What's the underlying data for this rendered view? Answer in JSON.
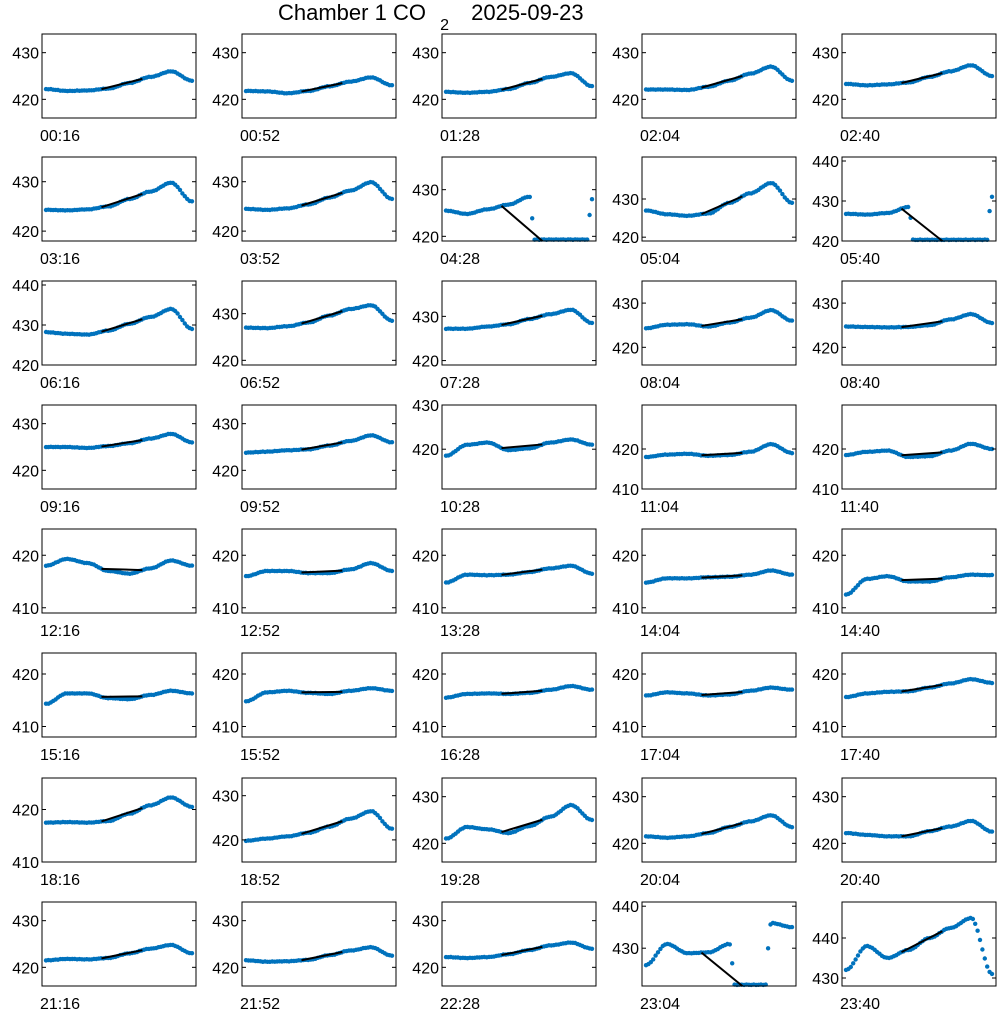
{
  "title": {
    "main": "Chamber 1 CO",
    "subscript": "2",
    "date": "2025-09-23"
  },
  "colors": {
    "points": "#0072BD",
    "fit": "#000000",
    "axes": "#000000"
  },
  "chart_data": [
    {
      "type": "scatter",
      "label": "00:16",
      "ylim": [
        416,
        434
      ],
      "yticks": [
        420,
        430
      ],
      "ctrl": [
        422.2,
        421.8,
        421.9,
        422.3,
        423.5,
        424.8,
        426,
        424
      ],
      "fit": [
        0.38,
        0.66
      ]
    },
    {
      "type": "scatter",
      "label": "00:52",
      "ylim": [
        416,
        434
      ],
      "yticks": [
        420,
        430
      ],
      "ctrl": [
        421.8,
        421.7,
        421.3,
        421.8,
        422.8,
        423.8,
        424.7,
        423
      ],
      "fit": [
        0.38,
        0.66
      ]
    },
    {
      "type": "scatter",
      "label": "01:28",
      "ylim": [
        416,
        434
      ],
      "yticks": [
        420,
        430
      ],
      "ctrl": [
        421.6,
        421.4,
        421.6,
        422.2,
        423.5,
        424.8,
        425.6,
        422.8
      ],
      "fit": [
        0.38,
        0.66
      ]
    },
    {
      "type": "scatter",
      "label": "02:04",
      "ylim": [
        416,
        434
      ],
      "yticks": [
        420,
        430
      ],
      "ctrl": [
        422.1,
        422.1,
        422,
        422.7,
        424,
        425.5,
        427,
        424
      ],
      "fit": [
        0.38,
        0.66
      ]
    },
    {
      "type": "scatter",
      "label": "02:40",
      "ylim": [
        416,
        434
      ],
      "yticks": [
        420,
        430
      ],
      "ctrl": [
        423.3,
        423,
        423.2,
        423.6,
        424.8,
        426,
        427.3,
        425
      ],
      "fit": [
        0.38,
        0.66
      ]
    },
    {
      "type": "scatter",
      "label": "03:16",
      "ylim": [
        418,
        435
      ],
      "yticks": [
        420,
        430
      ],
      "ctrl": [
        424.3,
        424.2,
        424.4,
        425,
        426.5,
        428,
        429.8,
        426
      ],
      "fit": [
        0.38,
        0.66
      ]
    },
    {
      "type": "scatter",
      "label": "03:52",
      "ylim": [
        418,
        435
      ],
      "yticks": [
        420,
        430
      ],
      "ctrl": [
        424.5,
        424.3,
        424.6,
        425.4,
        426.8,
        428.2,
        429.9,
        426.5
      ],
      "fit": [
        0.38,
        0.66
      ]
    },
    {
      "type": "scatter",
      "label": "04:28",
      "ylim": [
        419,
        437
      ],
      "yticks": [
        420,
        430
      ],
      "ctrl": [
        425.5,
        424.8,
        425.8,
        426.8,
        428.5,
        330.5,
        333,
        428
      ],
      "fit": [
        0.38,
        0.66
      ]
    },
    {
      "type": "scatter",
      "label": "05:04",
      "ylim": [
        419,
        441
      ],
      "yticks": [
        420,
        430
      ],
      "ctrl": [
        427,
        426,
        425.6,
        426.2,
        429,
        431.5,
        434.2,
        429
      ],
      "fit": [
        0.38,
        0.66
      ]
    },
    {
      "type": "scatter",
      "label": "05:40",
      "ylim": [
        420,
        441
      ],
      "yticks": [
        420,
        430,
        440
      ],
      "ctrl": [
        426.8,
        426.6,
        427,
        428.5,
        330.5,
        332.8,
        335,
        431
      ],
      "fit": [
        0.38,
        0.66
      ]
    },
    {
      "type": "scatter",
      "label": "06:16",
      "ylim": [
        420,
        441
      ],
      "yticks": [
        420,
        430,
        440
      ],
      "ctrl": [
        428.2,
        427.8,
        427.6,
        428.6,
        430.3,
        432,
        434,
        429
      ],
      "fit": [
        0.38,
        0.66
      ]
    },
    {
      "type": "scatter",
      "label": "06:52",
      "ylim": [
        419,
        437
      ],
      "yticks": [
        420,
        430
      ],
      "ctrl": [
        427,
        426.9,
        427.3,
        428.1,
        429.6,
        431,
        431.8,
        428.5
      ],
      "fit": [
        0.38,
        0.66
      ]
    },
    {
      "type": "scatter",
      "label": "07:28",
      "ylim": [
        419,
        438
      ],
      "yticks": [
        420,
        430
      ],
      "ctrl": [
        427.2,
        427.2,
        427.7,
        428.2,
        429.4,
        430.5,
        431.5,
        428.5
      ],
      "fit": [
        0.38,
        0.66
      ]
    },
    {
      "type": "scatter",
      "label": "08:04",
      "ylim": [
        416,
        435
      ],
      "yticks": [
        420,
        430
      ],
      "ctrl": [
        424.3,
        425.1,
        425.2,
        424.7,
        425.6,
        426.7,
        428.4,
        426
      ],
      "fit": [
        0.38,
        0.66
      ]
    },
    {
      "type": "scatter",
      "label": "08:40",
      "ylim": [
        416,
        435
      ],
      "yticks": [
        420,
        430
      ],
      "ctrl": [
        424.7,
        424.6,
        424.5,
        424.6,
        425,
        426.3,
        427.5,
        425.5
      ],
      "fit": [
        0.38,
        0.66
      ]
    },
    {
      "type": "scatter",
      "label": "09:16",
      "ylim": [
        416,
        434
      ],
      "yticks": [
        420,
        430
      ],
      "ctrl": [
        425,
        425,
        424.8,
        425.2,
        425.8,
        426.8,
        427.8,
        426
      ],
      "fit": [
        0.38,
        0.66
      ]
    },
    {
      "type": "scatter",
      "label": "09:52",
      "ylim": [
        416,
        434
      ],
      "yticks": [
        420,
        430
      ],
      "ctrl": [
        423.8,
        424,
        424.3,
        424.5,
        425.3,
        426.3,
        427.5,
        426
      ],
      "fit": [
        0.38,
        0.66
      ]
    },
    {
      "type": "scatter",
      "label": "10:28",
      "ylim": [
        411,
        430
      ],
      "yticks": [
        420,
        430
      ],
      "ctrl": [
        418.5,
        421,
        421.5,
        419.8,
        420.2,
        421.5,
        422.2,
        421
      ],
      "fit": [
        0.38,
        0.66
      ]
    },
    {
      "type": "scatter",
      "label": "11:04",
      "ylim": [
        410,
        431
      ],
      "yticks": [
        410,
        420
      ],
      "ctrl": [
        418,
        418.6,
        418.8,
        418.3,
        418.5,
        419.3,
        421.2,
        419
      ],
      "fit": [
        0.38,
        0.66
      ]
    },
    {
      "type": "scatter",
      "label": "11:40",
      "ylim": [
        410,
        431
      ],
      "yticks": [
        410,
        420
      ],
      "ctrl": [
        418.5,
        419.3,
        419.6,
        418,
        418.2,
        419.6,
        421.3,
        420
      ],
      "fit": [
        0.38,
        0.66
      ]
    },
    {
      "type": "scatter",
      "label": "12:16",
      "ylim": [
        409,
        425
      ],
      "yticks": [
        410,
        420
      ],
      "ctrl": [
        418,
        419.3,
        418.5,
        417,
        416.5,
        417.5,
        419,
        418
      ],
      "fit": [
        0.38,
        0.66
      ]
    },
    {
      "type": "scatter",
      "label": "12:52",
      "ylim": [
        409,
        425
      ],
      "yticks": [
        410,
        420
      ],
      "ctrl": [
        416,
        417,
        417,
        416.6,
        416.6,
        417.3,
        418.5,
        417
      ],
      "fit": [
        0.38,
        0.66
      ]
    },
    {
      "type": "scatter",
      "label": "13:28",
      "ylim": [
        409,
        425
      ],
      "yticks": [
        410,
        420
      ],
      "ctrl": [
        414.8,
        416.3,
        416.2,
        416.3,
        416.8,
        417.5,
        418,
        416.5
      ],
      "fit": [
        0.38,
        0.66
      ]
    },
    {
      "type": "scatter",
      "label": "14:04",
      "ylim": [
        409,
        425
      ],
      "yticks": [
        410,
        420
      ],
      "ctrl": [
        414.8,
        415.6,
        415.6,
        415.8,
        415.9,
        416.3,
        417.1,
        416.3
      ],
      "fit": [
        0.38,
        0.66
      ]
    },
    {
      "type": "scatter",
      "label": "14:40",
      "ylim": [
        409,
        425
      ],
      "yticks": [
        410,
        420
      ],
      "ctrl": [
        412.5,
        415.5,
        416,
        415,
        415,
        415.8,
        416.3,
        416.2
      ],
      "fit": [
        0.38,
        0.66
      ]
    },
    {
      "type": "scatter",
      "label": "15:16",
      "ylim": [
        408,
        424
      ],
      "yticks": [
        410,
        420
      ],
      "ctrl": [
        414.3,
        416.3,
        416.3,
        415.4,
        415.2,
        416,
        416.8,
        416.3
      ],
      "fit": [
        0.38,
        0.66
      ]
    },
    {
      "type": "scatter",
      "label": "15:52",
      "ylim": [
        408,
        424
      ],
      "yticks": [
        410,
        420
      ],
      "ctrl": [
        414.8,
        416.5,
        416.8,
        416.4,
        416.2,
        416.8,
        417.3,
        416.8
      ],
      "fit": [
        0.38,
        0.66
      ]
    },
    {
      "type": "scatter",
      "label": "16:28",
      "ylim": [
        408,
        424
      ],
      "yticks": [
        410,
        420
      ],
      "ctrl": [
        415.5,
        416.2,
        416.3,
        416.2,
        416.4,
        417,
        417.7,
        417
      ],
      "fit": [
        0.38,
        0.66
      ]
    },
    {
      "type": "scatter",
      "label": "17:04",
      "ylim": [
        408,
        424
      ],
      "yticks": [
        410,
        420
      ],
      "ctrl": [
        415.9,
        416.5,
        416.3,
        415.9,
        416.1,
        416.8,
        417.4,
        417
      ],
      "fit": [
        0.38,
        0.66
      ]
    },
    {
      "type": "scatter",
      "label": "17:40",
      "ylim": [
        408,
        424
      ],
      "yticks": [
        410,
        420
      ],
      "ctrl": [
        415.6,
        416.3,
        416.6,
        416.7,
        417.4,
        418.2,
        419,
        418.3
      ],
      "fit": [
        0.38,
        0.66
      ]
    },
    {
      "type": "scatter",
      "label": "18:16",
      "ylim": [
        410,
        426
      ],
      "yticks": [
        410,
        420
      ],
      "ctrl": [
        417.5,
        417.6,
        417.5,
        417.8,
        419.2,
        420.8,
        422.3,
        420.5
      ],
      "fit": [
        0.38,
        0.66
      ]
    },
    {
      "type": "scatter",
      "label": "18:52",
      "ylim": [
        415,
        434
      ],
      "yticks": [
        420,
        430
      ],
      "ctrl": [
        419.8,
        420.3,
        420.8,
        421.6,
        423,
        424.8,
        426.5,
        422.5
      ],
      "fit": [
        0.38,
        0.66
      ]
    },
    {
      "type": "scatter",
      "label": "19:28",
      "ylim": [
        416,
        434
      ],
      "yticks": [
        420,
        430
      ],
      "ctrl": [
        421,
        423.5,
        423,
        422.2,
        423.7,
        425.7,
        428.2,
        425
      ],
      "fit": [
        0.38,
        0.66
      ]
    },
    {
      "type": "scatter",
      "label": "20:04",
      "ylim": [
        416,
        434
      ],
      "yticks": [
        420,
        430
      ],
      "ctrl": [
        421.5,
        421.2,
        421.5,
        422.2,
        423.5,
        424.7,
        426,
        423.5
      ],
      "fit": [
        0.38,
        0.66
      ]
    },
    {
      "type": "scatter",
      "label": "20:40",
      "ylim": [
        416,
        434
      ],
      "yticks": [
        420,
        430
      ],
      "ctrl": [
        422.2,
        421.8,
        421.5,
        421.5,
        422.6,
        423.6,
        424.8,
        422.5
      ],
      "fit": [
        0.38,
        0.66
      ]
    },
    {
      "type": "scatter",
      "label": "21:16",
      "ylim": [
        416,
        434
      ],
      "yticks": [
        420,
        430
      ],
      "ctrl": [
        421.5,
        421.8,
        421.7,
        422,
        423,
        424,
        424.8,
        423
      ],
      "fit": [
        0.38,
        0.66
      ]
    },
    {
      "type": "scatter",
      "label": "21:52",
      "ylim": [
        416,
        434
      ],
      "yticks": [
        420,
        430
      ],
      "ctrl": [
        421.5,
        421.2,
        421.3,
        421.6,
        422.6,
        423.6,
        424.3,
        422.5
      ],
      "fit": [
        0.38,
        0.66
      ]
    },
    {
      "type": "scatter",
      "label": "22:28",
      "ylim": [
        416,
        434
      ],
      "yticks": [
        420,
        430
      ],
      "ctrl": [
        422.2,
        422,
        422.2,
        422.8,
        423.7,
        424.7,
        425.3,
        424
      ],
      "fit": [
        0.38,
        0.66
      ]
    },
    {
      "type": "scatter",
      "label": "23:04",
      "ylim": [
        421,
        441
      ],
      "yticks": [
        430,
        440
      ],
      "ctrl": [
        426,
        431,
        428.8,
        429,
        431,
        333.5,
        436,
        435
      ],
      "fit": [
        0.38,
        0.66
      ]
    },
    {
      "type": "scatter",
      "label": "23:40",
      "ylim": [
        428,
        449
      ],
      "yticks": [
        430,
        440
      ],
      "ctrl": [
        432,
        438,
        435,
        437,
        440,
        442.5,
        445,
        431
      ],
      "fit": [
        0.38,
        0.66
      ]
    }
  ]
}
